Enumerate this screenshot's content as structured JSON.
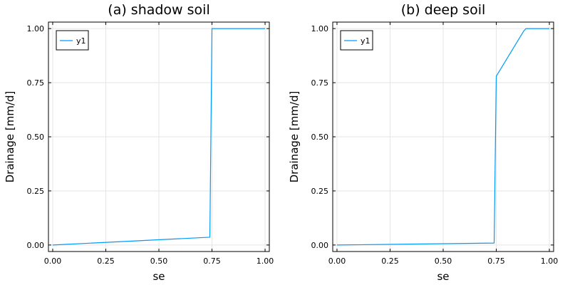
{
  "colors": {
    "series": "#009AFA",
    "grid": "#E6E6E6",
    "frame": "#000000",
    "background": "#FFFFFF"
  },
  "chart_data": [
    {
      "type": "line",
      "title": "(a) shadow soil",
      "xlabel": "se",
      "ylabel": "Drainage [mm/d]",
      "xlim": [
        -0.02,
        1.02
      ],
      "ylim": [
        -0.03,
        1.03
      ],
      "xticks": [
        0.0,
        0.25,
        0.5,
        0.75,
        1.0
      ],
      "xtick_labels": [
        "0.00",
        "0.25",
        "0.50",
        "0.75",
        "1.00"
      ],
      "yticks": [
        0.0,
        0.25,
        0.5,
        0.75,
        1.0
      ],
      "ytick_labels": [
        "0.00",
        "0.25",
        "0.50",
        "0.75",
        "1.00"
      ],
      "grid": true,
      "legend": "top-left",
      "series": [
        {
          "name": "y1",
          "x": [
            0.0,
            0.74,
            0.75,
            1.0
          ],
          "y": [
            0.0,
            0.036,
            1.0,
            1.0
          ]
        }
      ]
    },
    {
      "type": "line",
      "title": "(b) deep soil",
      "xlabel": "se",
      "ylabel": "Drainage [mm/d]",
      "xlim": [
        -0.02,
        1.02
      ],
      "ylim": [
        -0.03,
        1.03
      ],
      "xticks": [
        0.0,
        0.25,
        0.5,
        0.75,
        1.0
      ],
      "xtick_labels": [
        "0.00",
        "0.25",
        "0.50",
        "0.75",
        "1.00"
      ],
      "yticks": [
        0.0,
        0.25,
        0.5,
        0.75,
        1.0
      ],
      "ytick_labels": [
        "0.00",
        "0.25",
        "0.50",
        "0.75",
        "1.00"
      ],
      "grid": true,
      "legend": "top-left",
      "series": [
        {
          "name": "y1",
          "x": [
            0.0,
            0.74,
            0.75,
            0.88,
            0.89,
            1.0
          ],
          "y": [
            0.0,
            0.009,
            0.78,
            0.99,
            1.0,
            1.0
          ]
        }
      ]
    }
  ]
}
